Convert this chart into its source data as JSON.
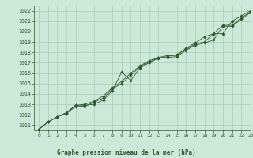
{
  "title": "Graphe pression niveau de la mer (hPa)",
  "bg_color": "#cbe8d8",
  "grid_color": "#a8ccbb",
  "line_color": "#2d5a2d",
  "marker_color": "#2d5a2d",
  "xlim": [
    -0.5,
    23
  ],
  "ylim": [
    1010.5,
    1022.5
  ],
  "xticks": [
    0,
    1,
    2,
    3,
    4,
    5,
    6,
    7,
    8,
    9,
    10,
    11,
    12,
    13,
    14,
    15,
    16,
    17,
    18,
    19,
    20,
    21,
    22,
    23
  ],
  "yticks": [
    1011,
    1012,
    1013,
    1014,
    1015,
    1016,
    1017,
    1018,
    1019,
    1020,
    1021,
    1022
  ],
  "series1_x": [
    0,
    1,
    2,
    3,
    4,
    5,
    6,
    7,
    8,
    9,
    10,
    11,
    12,
    13,
    14,
    15,
    16,
    17,
    18,
    19,
    20,
    21,
    22,
    23
  ],
  "series1_y": [
    1010.6,
    1011.3,
    1011.8,
    1012.1,
    1012.8,
    1012.9,
    1013.0,
    1013.4,
    1014.3,
    1016.1,
    1015.3,
    1016.5,
    1017.0,
    1017.5,
    1017.5,
    1017.6,
    1018.2,
    1018.7,
    1018.9,
    1019.2,
    1020.5,
    1020.5,
    1021.2,
    1021.8
  ],
  "series2_x": [
    0,
    1,
    2,
    3,
    4,
    5,
    6,
    7,
    8,
    9,
    10,
    11,
    12,
    13,
    14,
    15,
    16,
    17,
    18,
    19,
    20,
    21,
    22,
    23
  ],
  "series2_y": [
    1010.6,
    1011.3,
    1011.8,
    1012.2,
    1012.9,
    1012.8,
    1013.2,
    1013.6,
    1014.5,
    1015.0,
    1015.8,
    1016.6,
    1017.1,
    1017.4,
    1017.6,
    1017.8,
    1018.3,
    1018.8,
    1019.0,
    1019.8,
    1020.6,
    1020.6,
    1021.3,
    1021.9
  ],
  "series3_x": [
    0,
    1,
    2,
    3,
    4,
    5,
    6,
    7,
    8,
    9,
    10,
    11,
    12,
    13,
    14,
    15,
    16,
    17,
    18,
    19,
    20,
    21,
    22,
    23
  ],
  "series3_y": [
    1010.6,
    1011.3,
    1011.8,
    1012.2,
    1012.9,
    1013.0,
    1013.3,
    1013.8,
    1014.6,
    1015.2,
    1016.0,
    1016.7,
    1017.2,
    1017.5,
    1017.7,
    1017.7,
    1018.4,
    1018.9,
    1019.5,
    1019.8,
    1019.8,
    1021.0,
    1021.5,
    1022.0
  ]
}
